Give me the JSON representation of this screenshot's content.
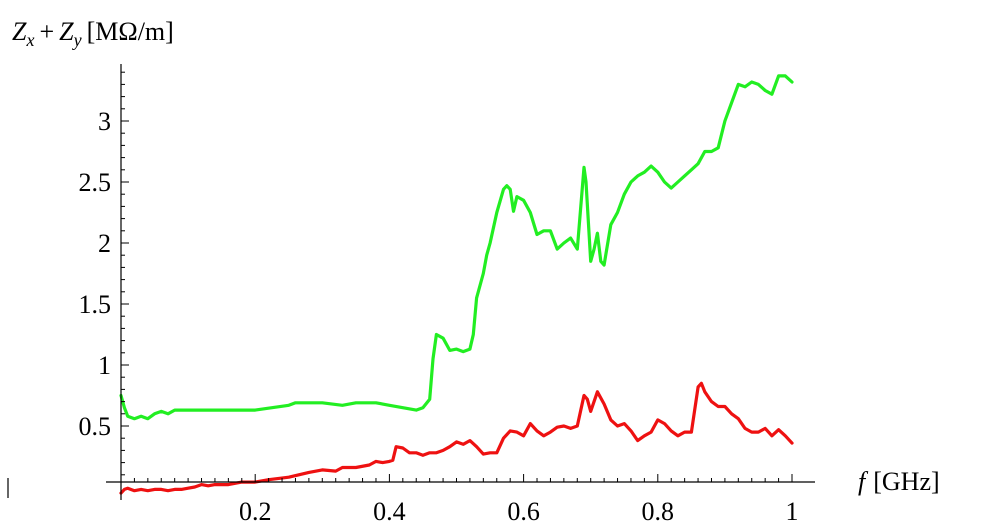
{
  "chart_data": {
    "type": "line",
    "title": "",
    "xlabel": {
      "var": "f",
      "unit": "[GHz]"
    },
    "ylabel": {
      "v1": "Z",
      "s1": "x",
      "plus": "+",
      "v2": "Z",
      "s2": "y",
      "unit": "[MΩ/m]"
    },
    "xlim": [
      0,
      1
    ],
    "ylim": [
      -0.05,
      3.45
    ],
    "x_ticks": [
      0.2,
      0.4,
      0.6,
      0.8,
      1
    ],
    "x_tick_labels": [
      "0.2",
      "0.4",
      "0.6",
      "0.8",
      "1"
    ],
    "y_ticks": [
      0.5,
      1,
      1.5,
      2,
      2.5,
      3
    ],
    "y_tick_labels": [
      "0.5",
      "1",
      "1.5",
      "2",
      "2.5",
      "3"
    ],
    "grid": false,
    "series": [
      {
        "color": "#22ee22",
        "x": [
          0.0,
          0.005,
          0.01,
          0.02,
          0.03,
          0.04,
          0.05,
          0.06,
          0.07,
          0.08,
          0.09,
          0.1,
          0.15,
          0.2,
          0.25,
          0.26,
          0.3,
          0.33,
          0.35,
          0.38,
          0.4,
          0.42,
          0.44,
          0.45,
          0.46,
          0.465,
          0.47,
          0.48,
          0.49,
          0.5,
          0.51,
          0.52,
          0.525,
          0.53,
          0.54,
          0.545,
          0.55,
          0.56,
          0.57,
          0.575,
          0.58,
          0.585,
          0.59,
          0.6,
          0.61,
          0.62,
          0.63,
          0.64,
          0.65,
          0.66,
          0.67,
          0.68,
          0.69,
          0.693,
          0.7,
          0.705,
          0.71,
          0.715,
          0.72,
          0.73,
          0.74,
          0.75,
          0.76,
          0.77,
          0.78,
          0.79,
          0.8,
          0.81,
          0.82,
          0.83,
          0.84,
          0.85,
          0.86,
          0.87,
          0.88,
          0.89,
          0.9,
          0.91,
          0.92,
          0.93,
          0.94,
          0.95,
          0.96,
          0.97,
          0.98,
          0.99,
          1.0
        ],
        "y": [
          0.75,
          0.65,
          0.58,
          0.56,
          0.58,
          0.56,
          0.6,
          0.62,
          0.6,
          0.63,
          0.63,
          0.63,
          0.63,
          0.63,
          0.67,
          0.69,
          0.69,
          0.67,
          0.69,
          0.69,
          0.67,
          0.65,
          0.63,
          0.65,
          0.72,
          1.05,
          1.25,
          1.22,
          1.12,
          1.13,
          1.11,
          1.13,
          1.25,
          1.55,
          1.75,
          1.9,
          2.0,
          2.25,
          2.44,
          2.47,
          2.44,
          2.26,
          2.38,
          2.35,
          2.25,
          2.07,
          2.1,
          2.1,
          1.95,
          2.0,
          2.04,
          1.95,
          2.62,
          2.5,
          1.85,
          1.95,
          2.08,
          1.85,
          1.82,
          2.15,
          2.25,
          2.4,
          2.5,
          2.55,
          2.58,
          2.63,
          2.58,
          2.5,
          2.45,
          2.5,
          2.55,
          2.6,
          2.65,
          2.75,
          2.75,
          2.78,
          3.0,
          3.15,
          3.3,
          3.28,
          3.32,
          3.3,
          3.25,
          3.22,
          3.37,
          3.37,
          3.32
        ]
      },
      {
        "color": "#ee1111",
        "x": [
          0.0,
          0.005,
          0.01,
          0.02,
          0.03,
          0.04,
          0.05,
          0.06,
          0.07,
          0.08,
          0.09,
          0.1,
          0.11,
          0.12,
          0.13,
          0.14,
          0.15,
          0.16,
          0.18,
          0.2,
          0.22,
          0.25,
          0.28,
          0.3,
          0.32,
          0.33,
          0.35,
          0.37,
          0.38,
          0.39,
          0.4,
          0.405,
          0.41,
          0.42,
          0.43,
          0.44,
          0.45,
          0.46,
          0.47,
          0.48,
          0.49,
          0.5,
          0.51,
          0.52,
          0.53,
          0.535,
          0.54,
          0.55,
          0.56,
          0.57,
          0.58,
          0.59,
          0.6,
          0.61,
          0.62,
          0.63,
          0.64,
          0.65,
          0.66,
          0.67,
          0.68,
          0.69,
          0.695,
          0.7,
          0.71,
          0.72,
          0.73,
          0.74,
          0.75,
          0.76,
          0.77,
          0.78,
          0.79,
          0.8,
          0.81,
          0.82,
          0.83,
          0.84,
          0.85,
          0.86,
          0.865,
          0.87,
          0.88,
          0.89,
          0.9,
          0.91,
          0.92,
          0.93,
          0.94,
          0.95,
          0.96,
          0.97,
          0.98,
          0.99,
          1.0
        ],
        "y": [
          -0.05,
          -0.02,
          -0.01,
          -0.03,
          -0.02,
          -0.03,
          -0.02,
          -0.02,
          -0.03,
          -0.02,
          -0.02,
          -0.01,
          0.0,
          0.02,
          0.01,
          0.02,
          0.02,
          0.02,
          0.04,
          0.04,
          0.06,
          0.08,
          0.12,
          0.14,
          0.13,
          0.16,
          0.16,
          0.18,
          0.21,
          0.2,
          0.21,
          0.22,
          0.33,
          0.32,
          0.28,
          0.28,
          0.26,
          0.28,
          0.28,
          0.3,
          0.33,
          0.37,
          0.35,
          0.38,
          0.33,
          0.3,
          0.27,
          0.28,
          0.28,
          0.4,
          0.46,
          0.45,
          0.42,
          0.52,
          0.46,
          0.42,
          0.45,
          0.49,
          0.5,
          0.48,
          0.5,
          0.75,
          0.72,
          0.62,
          0.78,
          0.68,
          0.55,
          0.5,
          0.52,
          0.46,
          0.38,
          0.42,
          0.45,
          0.55,
          0.52,
          0.46,
          0.42,
          0.45,
          0.45,
          0.82,
          0.85,
          0.78,
          0.7,
          0.66,
          0.66,
          0.6,
          0.56,
          0.48,
          0.45,
          0.45,
          0.48,
          0.42,
          0.47,
          0.42,
          0.36
        ]
      }
    ]
  }
}
